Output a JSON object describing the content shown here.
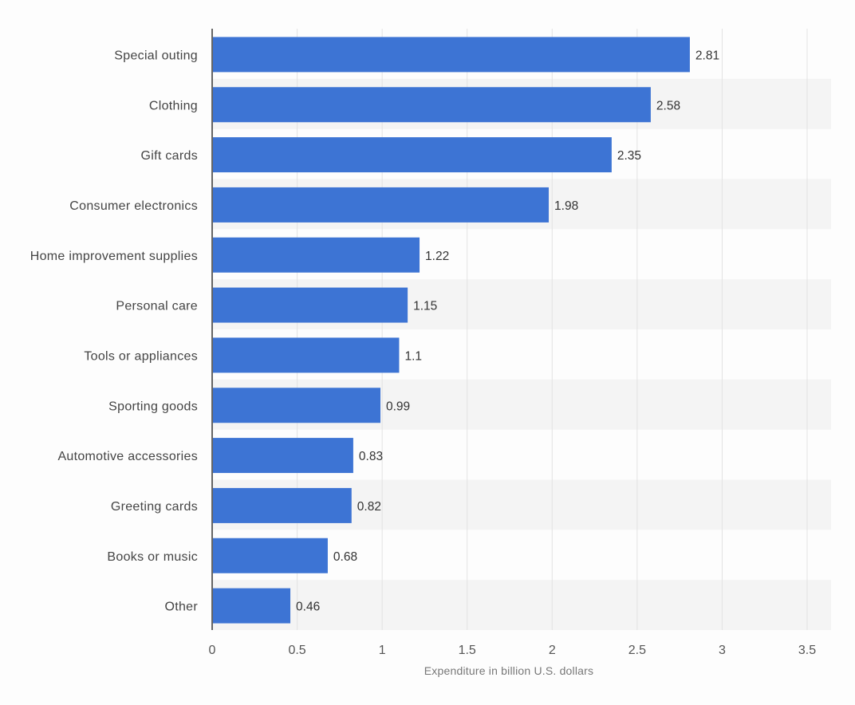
{
  "chart_data": {
    "type": "bar",
    "orientation": "horizontal",
    "categories": [
      "Special outing",
      "Clothing",
      "Gift cards",
      "Consumer electronics",
      "Home improvement supplies",
      "Personal care",
      "Tools or appliances",
      "Sporting goods",
      "Automotive accessories",
      "Greeting cards",
      "Books or music",
      "Other"
    ],
    "values": [
      2.81,
      2.58,
      2.35,
      1.98,
      1.22,
      1.15,
      1.1,
      0.99,
      0.83,
      0.82,
      0.68,
      0.46
    ],
    "value_labels": [
      "2.81",
      "2.58",
      "2.35",
      "1.98",
      "1.22",
      "1.15",
      "1.1",
      "0.99",
      "0.83",
      "0.82",
      "0.68",
      "0.46"
    ],
    "title": "",
    "xlabel": "Expenditure in billion U.S. dollars",
    "ylabel": "",
    "xlim": [
      0,
      3.5
    ],
    "xticks": [
      0,
      0.5,
      1,
      1.5,
      2,
      2.5,
      3,
      3.5
    ],
    "xtick_labels": [
      "0",
      "0.5",
      "1",
      "1.5",
      "2",
      "2.5",
      "3",
      "3.5"
    ],
    "grid": true,
    "colors": {
      "bar": "#3d74d4",
      "grid": "#e2e2e2",
      "band": "#f4f4f4",
      "axis": "#333333"
    }
  }
}
